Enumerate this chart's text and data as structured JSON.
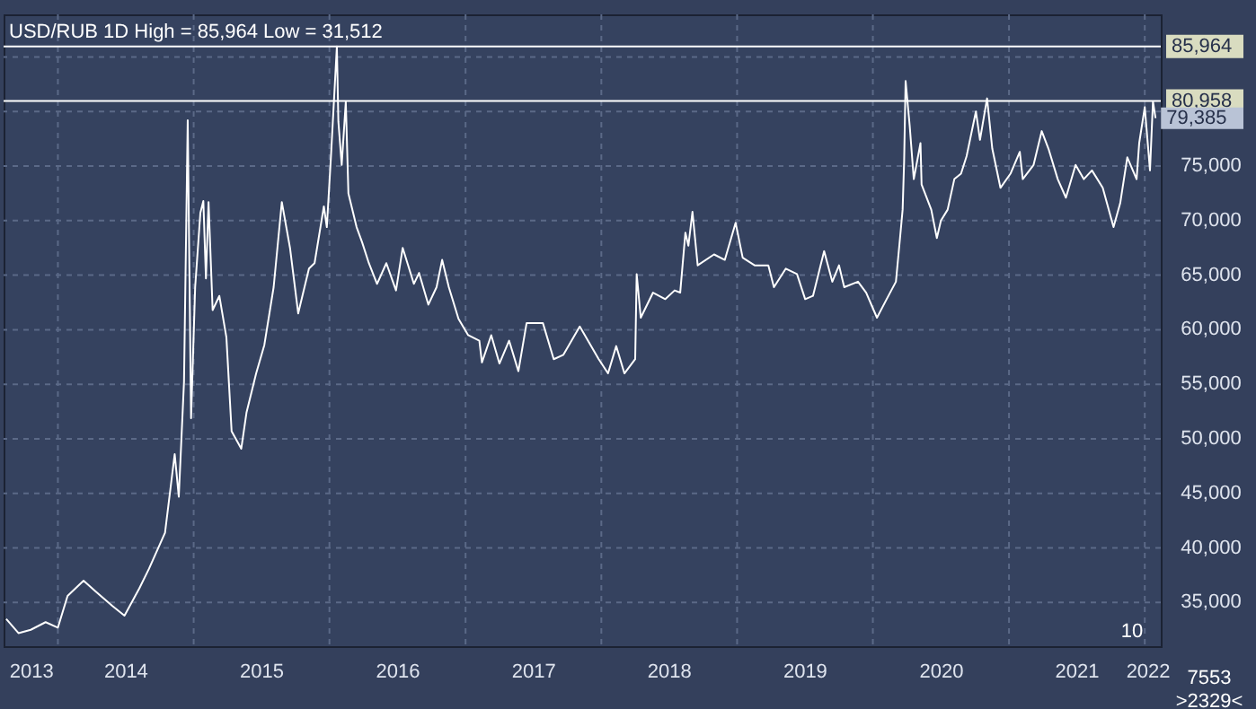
{
  "chart_data": {
    "type": "line",
    "title": "USD/RUB 1D High = 85,964 Low = 31,512",
    "x": [
      "2013-08-15",
      "2013-09-17",
      "2013-10-20",
      "2013-11-29",
      "2014-01-01",
      "2014-01-27",
      "2014-03-11",
      "2014-04-13",
      "2014-05-27",
      "2014-06-29",
      "2014-08-08",
      "2014-09-03",
      "2014-10-16",
      "2014-11-11",
      "2014-11-22",
      "2014-12-06",
      "2014-12-16",
      "2014-12-25",
      "2015-01-05",
      "2015-01-19",
      "2015-01-27",
      "2015-02-03",
      "2015-02-10",
      "2015-02-21",
      "2015-03-11",
      "2015-03-30",
      "2015-04-13",
      "2015-05-09",
      "2015-05-23",
      "2015-06-18",
      "2015-07-10",
      "2015-08-04",
      "2015-08-26",
      "2015-09-17",
      "2015-10-09",
      "2015-11-07",
      "2015-11-22",
      "2015-12-17",
      "2015-12-25",
      "2016-01-05",
      "2016-01-21",
      "2016-01-25",
      "2016-02-03",
      "2016-02-14",
      "2016-02-21",
      "2016-03-14",
      "2016-03-29",
      "2016-04-16",
      "2016-05-08",
      "2016-06-02",
      "2016-06-28",
      "2016-07-16",
      "2016-08-15",
      "2016-08-29",
      "2016-09-23",
      "2016-10-15",
      "2016-10-30",
      "2016-11-17",
      "2016-12-13",
      "2017-01-08",
      "2017-02-07",
      "2017-02-14",
      "2017-03-11",
      "2017-04-02",
      "2017-04-28",
      "2017-05-23",
      "2017-06-14",
      "2017-07-28",
      "2017-08-26",
      "2017-09-21",
      "2017-11-04",
      "2017-11-26",
      "2017-12-25",
      "2018-01-19",
      "2018-02-10",
      "2018-03-04",
      "2018-04-02",
      "2018-04-06",
      "2018-04-17",
      "2018-05-20",
      "2018-06-22",
      "2018-07-17",
      "2018-08-01",
      "2018-08-15",
      "2018-08-23",
      "2018-09-03",
      "2018-09-17",
      "2018-10-31",
      "2018-11-29",
      "2018-12-28",
      "2019-01-16",
      "2019-02-17",
      "2019-03-26",
      "2019-04-10",
      "2019-05-12",
      "2019-06-11",
      "2019-07-03",
      "2019-07-24",
      "2019-08-23",
      "2019-09-14",
      "2019-10-02",
      "2019-10-16",
      "2019-11-22",
      "2019-12-14",
      "2020-01-12",
      "2020-02-07",
      "2020-03-03",
      "2020-03-14",
      "2020-03-21",
      "2020-03-25",
      "2020-03-29",
      "2020-04-09",
      "2020-04-20",
      "2020-05-08",
      "2020-05-11",
      "2020-06-06",
      "2020-06-21",
      "2020-07-02",
      "2020-07-20",
      "2020-08-07",
      "2020-08-25",
      "2020-09-09",
      "2020-10-04",
      "2020-10-15",
      "2020-11-03",
      "2020-11-17",
      "2020-12-09",
      "2021-01-05",
      "2021-01-30",
      "2021-02-07",
      "2021-03-08",
      "2021-03-30",
      "2021-04-17",
      "2021-05-12",
      "2021-06-03",
      "2021-06-29",
      "2021-07-21",
      "2021-08-12",
      "2021-09-10",
      "2021-10-09",
      "2021-10-27",
      "2021-11-15",
      "2021-12-10",
      "2021-12-17",
      "2022-01-01",
      "2022-01-15",
      "2022-01-23",
      "2022-01-30"
    ],
    "series": [
      {
        "color": "#ffffff",
        "values": [
          33500,
          32200,
          32500,
          33200,
          32700,
          35600,
          37000,
          36000,
          34700,
          33800,
          36300,
          38100,
          41400,
          48600,
          44700,
          55200,
          79200,
          51900,
          63900,
          70700,
          71800,
          64700,
          71700,
          61800,
          63100,
          59300,
          50700,
          49100,
          52400,
          56000,
          58600,
          63900,
          71700,
          67500,
          61500,
          65600,
          66100,
          71300,
          69400,
          75800,
          85964,
          79100,
          75100,
          80900,
          72500,
          69400,
          68000,
          66100,
          64200,
          66100,
          63600,
          67500,
          64200,
          65200,
          62300,
          63900,
          66400,
          63900,
          61000,
          59500,
          59000,
          57000,
          59500,
          56900,
          59000,
          56200,
          60600,
          60600,
          57300,
          57700,
          60300,
          59000,
          57300,
          56000,
          58500,
          56000,
          57300,
          65100,
          61100,
          63400,
          62800,
          63600,
          63400,
          68900,
          67700,
          70800,
          65900,
          66900,
          66400,
          69800,
          66600,
          65900,
          65900,
          63900,
          65600,
          65100,
          62800,
          63100,
          67200,
          64400,
          65900,
          63900,
          64400,
          63400,
          61100,
          62800,
          64400,
          68400,
          71000,
          75400,
          82800,
          78700,
          73800,
          77100,
          73300,
          71000,
          68400,
          70000,
          71000,
          73800,
          74300,
          75900,
          80000,
          77400,
          81200,
          76600,
          73000,
          74300,
          76300,
          73800,
          75100,
          78200,
          76600,
          73800,
          72100,
          75100,
          73800,
          74600,
          73000,
          69400,
          71600,
          75800,
          73800,
          77100,
          80400,
          74600,
          80900,
          79385
        ]
      }
    ],
    "xlim": [
      "2013-08-08",
      "2022-02-13"
    ],
    "xticks": [
      {
        "value": "2013-10-20",
        "label": "2013"
      },
      {
        "value": "2014-01-01",
        "label": null
      },
      {
        "value": "2014-07-01",
        "label": "2014"
      },
      {
        "value": "2015-01-01",
        "label": null
      },
      {
        "value": "2015-07-01",
        "label": "2015"
      },
      {
        "value": "2016-01-01",
        "label": null
      },
      {
        "value": "2016-07-01",
        "label": "2016"
      },
      {
        "value": "2017-01-01",
        "label": null
      },
      {
        "value": "2017-07-01",
        "label": "2017"
      },
      {
        "value": "2018-01-01",
        "label": null
      },
      {
        "value": "2018-07-01",
        "label": "2018"
      },
      {
        "value": "2019-01-01",
        "label": null
      },
      {
        "value": "2019-07-01",
        "label": "2019"
      },
      {
        "value": "2020-01-01",
        "label": null
      },
      {
        "value": "2020-07-01",
        "label": "2020"
      },
      {
        "value": "2021-01-01",
        "label": null
      },
      {
        "value": "2021-07-01",
        "label": "2021"
      },
      {
        "value": "2022-01-01",
        "label": null
      },
      {
        "value": "2022-01-08",
        "label": "2022"
      }
    ],
    "ylim": [
      31000,
      88900
    ],
    "yticks": [
      {
        "value": 35000,
        "label": "35,000"
      },
      {
        "value": 40000,
        "label": "40,000"
      },
      {
        "value": 45000,
        "label": "45,000"
      },
      {
        "value": 50000,
        "label": "50,000"
      },
      {
        "value": 55000,
        "label": "55,000"
      },
      {
        "value": 60000,
        "label": "60,000"
      },
      {
        "value": 65000,
        "label": "65,000"
      },
      {
        "value": 70000,
        "label": "70,000"
      },
      {
        "value": 75000,
        "label": "75,000"
      },
      {
        "value": 80000,
        "label": null
      },
      {
        "value": 85000,
        "label": null
      }
    ],
    "ref_lines": [
      {
        "axis": "y",
        "value": 85964,
        "label": "85,964",
        "color": "#ffffff"
      },
      {
        "axis": "y",
        "value": 80958,
        "label": "80,958",
        "color": "#ffffff"
      }
    ],
    "annotations": [
      {
        "text": "79,385",
        "x": "2022-01-30",
        "y": 79385
      },
      "10",
      "7553",
      ">2329<"
    ],
    "grid": true,
    "line_style": "solid",
    "marker": "none"
  }
}
